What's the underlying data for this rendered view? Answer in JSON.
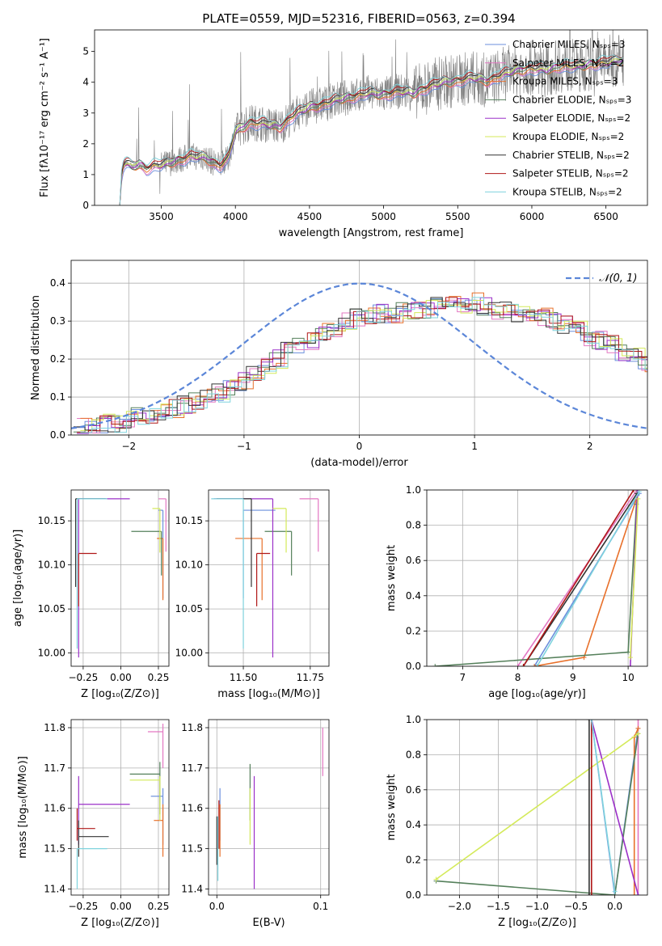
{
  "colors": {
    "chabrier_miles": "#6b8fdc",
    "salpeter_miles": "#e377c2",
    "kroupa_miles": "#e8702a",
    "chabrier_elodie": "#55805b",
    "salpeter_elodie": "#9b30c8",
    "kroupa_elodie": "#d4ea5a",
    "chabrier_stelib": "#333333",
    "salpeter_stelib": "#b01818",
    "kroupa_stelib": "#7fd3dd",
    "data": "#808080",
    "gauss": "#5b86d8"
  },
  "chart_data": [
    {
      "type": "line",
      "title": "PLATE=0559, MJD=52316, FIBERID=0563, z=0.394",
      "xlabel": "wavelength [Angstrom, rest frame]",
      "ylabel": "Flux [fλ10⁻¹⁷ erg cm⁻² s⁻¹ A⁻¹]",
      "xlim": [
        3050,
        6780
      ],
      "ylim": [
        0,
        5.7
      ],
      "xticks": [
        "3500",
        "4000",
        "4500",
        "5000",
        "5500",
        "6000",
        "6500"
      ],
      "yticks": [
        "0",
        "1",
        "2",
        "3",
        "4",
        "5"
      ],
      "legend_position": "top-right",
      "legend": [
        "Chabrier MILES, Nₛₚₛ=3",
        "Salpeter MILES, Nₛₚₛ=2",
        "Kroupa MILES, Nₛₚₛ=3",
        "Chabrier ELODIE, Nₛₚₛ=3",
        "Salpeter ELODIE, Nₛₚₛ=2",
        "Kroupa ELODIE, Nₛₚₛ=2",
        "Chabrier STELIB, Nₛₚₛ=2",
        "Salpeter STELIB, Nₛₚₛ=2",
        "Kroupa STELIB, Nₛₚₛ=2"
      ],
      "model_continuum": [
        [
          3220,
          0.0
        ],
        [
          3235,
          1.2
        ],
        [
          3260,
          1.4
        ],
        [
          3300,
          1.25
        ],
        [
          3350,
          1.35
        ],
        [
          3400,
          1.2
        ],
        [
          3450,
          1.3
        ],
        [
          3500,
          1.3
        ],
        [
          3600,
          1.45
        ],
        [
          3700,
          1.6
        ],
        [
          3800,
          1.55
        ],
        [
          3850,
          1.4
        ],
        [
          3900,
          1.3
        ],
        [
          3950,
          1.5
        ],
        [
          4000,
          2.4
        ],
        [
          4100,
          2.7
        ],
        [
          4200,
          2.65
        ],
        [
          4300,
          2.55
        ],
        [
          4400,
          2.95
        ],
        [
          4500,
          3.2
        ],
        [
          4600,
          3.3
        ],
        [
          4700,
          3.45
        ],
        [
          4800,
          3.55
        ],
        [
          4900,
          3.65
        ],
        [
          5000,
          3.6
        ],
        [
          5100,
          3.7
        ],
        [
          5200,
          3.65
        ],
        [
          5300,
          3.85
        ],
        [
          5400,
          4.0
        ],
        [
          5500,
          4.05
        ],
        [
          5600,
          4.15
        ],
        [
          5700,
          4.05
        ],
        [
          5800,
          4.25
        ],
        [
          5900,
          4.4
        ],
        [
          6000,
          4.45
        ],
        [
          6100,
          4.4
        ],
        [
          6200,
          4.55
        ],
        [
          6300,
          4.5
        ],
        [
          6400,
          4.6
        ],
        [
          6500,
          4.65
        ],
        [
          6600,
          4.7
        ]
      ]
    },
    {
      "type": "bar",
      "xlabel": "(data-model)/error",
      "ylabel": "Normed distribution",
      "xlim": [
        -2.5,
        2.5
      ],
      "ylim": [
        0,
        0.46
      ],
      "xticks": [
        "−2",
        "−1",
        "0",
        "1",
        "2"
      ],
      "yticks": [
        "0.0",
        "0.1",
        "0.2",
        "0.3",
        "0.4"
      ],
      "legend_position": "top-right",
      "legend": [
        "𝒩(0, 1)"
      ],
      "bin_width": 0.1,
      "histogram_mean_profile": [
        0.02,
        0.02,
        0.03,
        0.03,
        0.04,
        0.05,
        0.05,
        0.06,
        0.07,
        0.08,
        0.09,
        0.1,
        0.11,
        0.12,
        0.14,
        0.16,
        0.18,
        0.2,
        0.22,
        0.24,
        0.25,
        0.27,
        0.28,
        0.3,
        0.31,
        0.31,
        0.32,
        0.32,
        0.33,
        0.33,
        0.33,
        0.34,
        0.34,
        0.34,
        0.35,
        0.34,
        0.33,
        0.33,
        0.32,
        0.31,
        0.31,
        0.3,
        0.29,
        0.28,
        0.26,
        0.25,
        0.24,
        0.22,
        0.21,
        0.19,
        0.17,
        0.16,
        0.14,
        0.13,
        0.12,
        0.11,
        0.1,
        0.09,
        0.09,
        0.08,
        0.08,
        0.07,
        0.07,
        0.07,
        0.06,
        0.06
      ]
    },
    {
      "type": "scatter",
      "xlabel": "Z [log₁₀(Z/Z⊙)]",
      "ylabel": "age  [log₁₀(age/yr)]",
      "xlim": [
        -0.33,
        0.32
      ],
      "ylim": [
        9.985,
        10.185
      ],
      "xticks": [
        "−0.25",
        "0.00",
        "0.25"
      ],
      "yticks": [
        "10.00",
        "10.05",
        "10.10",
        "10.15"
      ],
      "points": [
        {
          "series": "chabrier_miles",
          "x": 0.28,
          "y": 10.162,
          "xerr": [
            0.03,
            0.0
          ],
          "yerr": [
            0.1,
            0.0
          ]
        },
        {
          "series": "salpeter_miles",
          "x": 0.3,
          "y": 10.175,
          "xerr": [
            0.05,
            0.0
          ],
          "yerr": [
            0.06,
            0.0
          ]
        },
        {
          "series": "kroupa_miles",
          "x": 0.28,
          "y": 10.13,
          "xerr": [
            0.04,
            0.0
          ],
          "yerr": [
            0.07,
            0.0
          ]
        },
        {
          "series": "chabrier_elodie",
          "x": 0.27,
          "y": 10.138,
          "xerr": [
            0.2,
            0.0
          ],
          "yerr": [
            0.05,
            0.0
          ]
        },
        {
          "series": "salpeter_elodie",
          "x": -0.28,
          "y": 10.175,
          "xerr": [
            0.0,
            0.34
          ],
          "yerr": [
            0.18,
            0.0
          ]
        },
        {
          "series": "kroupa_elodie",
          "x": 0.26,
          "y": 10.164,
          "xerr": [
            0.05,
            0.0
          ],
          "yerr": [
            0.05,
            0.0
          ]
        },
        {
          "series": "chabrier_stelib",
          "x": -0.3,
          "y": 10.175,
          "xerr": [
            0.0,
            0.2
          ],
          "yerr": [
            0.1,
            0.0
          ]
        },
        {
          "series": "salpeter_stelib",
          "x": -0.28,
          "y": 10.113,
          "xerr": [
            0.0,
            0.12
          ],
          "yerr": [
            0.06,
            0.0
          ]
        },
        {
          "series": "kroupa_stelib",
          "x": -0.29,
          "y": 10.175,
          "xerr": [
            0.0,
            0.2
          ],
          "yerr": [
            0.17,
            0.0
          ]
        }
      ]
    },
    {
      "type": "scatter",
      "xlabel": "mass [log₁₀(M/M⊙)]",
      "ylabel": "",
      "xlim": [
        11.37,
        11.82
      ],
      "ylim": [
        9.985,
        10.185
      ],
      "xticks": [
        "11.50",
        "11.75"
      ],
      "yticks": [
        "10.00",
        "10.05",
        "10.10",
        "10.15"
      ],
      "points": [
        {
          "series": "chabrier_miles",
          "x": 11.5,
          "y": 10.162,
          "xerr": [
            0.0,
            0.12
          ],
          "yerr": [
            0.1,
            0.0
          ]
        },
        {
          "series": "salpeter_miles",
          "x": 11.78,
          "y": 10.175,
          "xerr": [
            0.07,
            0.0
          ],
          "yerr": [
            0.06,
            0.0
          ]
        },
        {
          "series": "kroupa_miles",
          "x": 11.57,
          "y": 10.13,
          "xerr": [
            0.1,
            0.0
          ],
          "yerr": [
            0.07,
            0.0
          ]
        },
        {
          "series": "chabrier_elodie",
          "x": 11.68,
          "y": 10.138,
          "xerr": [
            0.1,
            0.0
          ],
          "yerr": [
            0.05,
            0.0
          ]
        },
        {
          "series": "salpeter_elodie",
          "x": 11.61,
          "y": 10.175,
          "xerr": [
            0.22,
            0.0
          ],
          "yerr": [
            0.18,
            0.0
          ]
        },
        {
          "series": "kroupa_elodie",
          "x": 11.66,
          "y": 10.164,
          "xerr": [
            0.05,
            0.0
          ],
          "yerr": [
            0.05,
            0.0
          ]
        },
        {
          "series": "chabrier_stelib",
          "x": 11.53,
          "y": 10.175,
          "xerr": [
            0.13,
            0.0
          ],
          "yerr": [
            0.1,
            0.0
          ]
        },
        {
          "series": "salpeter_stelib",
          "x": 11.55,
          "y": 10.113,
          "xerr": [
            0.0,
            0.05
          ],
          "yerr": [
            0.06,
            0.0
          ]
        },
        {
          "series": "kroupa_stelib",
          "x": 11.5,
          "y": 10.175,
          "xerr": [
            0.12,
            0.0
          ],
          "yerr": [
            0.17,
            0.0
          ]
        }
      ]
    },
    {
      "type": "line",
      "xlabel": "age  [log₁₀(age/yr)]",
      "ylabel": "mass weight",
      "xlim": [
        6.35,
        10.35
      ],
      "ylim": [
        0,
        1
      ],
      "xticks": [
        "7",
        "8",
        "9",
        "10"
      ],
      "yticks": [
        "0.0",
        "0.2",
        "0.4",
        "0.6",
        "0.8",
        "1.0"
      ],
      "series": [
        {
          "series": "chabrier_miles",
          "x": [
            8.3,
            10.2
          ],
          "y": [
            0.0,
            0.98
          ]
        },
        {
          "series": "salpeter_miles",
          "x": [
            8.0,
            10.16
          ],
          "y": [
            0.0,
            1.0
          ]
        },
        {
          "series": "kroupa_miles",
          "x": [
            8.3,
            9.2,
            10.15
          ],
          "y": [
            0.0,
            0.05,
            0.95
          ]
        },
        {
          "series": "chabrier_elodie",
          "x": [
            6.5,
            10.0,
            10.15
          ],
          "y": [
            0.0,
            0.08,
            0.92
          ]
        },
        {
          "series": "salpeter_elodie",
          "x": [
            10.04,
            10.17
          ],
          "y": [
            0.0,
            1.0
          ]
        },
        {
          "series": "kroupa_elodie",
          "x": [
            10.04,
            10.18
          ],
          "y": [
            0.05,
            0.95
          ]
        },
        {
          "series": "chabrier_stelib",
          "x": [
            8.1,
            10.16
          ],
          "y": [
            0.0,
            0.98
          ]
        },
        {
          "series": "salpeter_stelib",
          "x": [
            8.1,
            10.1
          ],
          "y": [
            0.0,
            1.0
          ]
        },
        {
          "series": "kroupa_stelib",
          "x": [
            8.35,
            10.2
          ],
          "y": [
            0.0,
            0.99
          ]
        }
      ]
    },
    {
      "type": "scatter",
      "xlabel": "Z [log₁₀(Z/Z⊙)]",
      "ylabel": "mass [log₁₀(M/M⊙)]",
      "xlim": [
        -0.33,
        0.32
      ],
      "ylim": [
        11.385,
        11.82
      ],
      "xticks": [
        "−0.25",
        "0.00",
        "0.25"
      ],
      "yticks": [
        "11.4",
        "11.5",
        "11.6",
        "11.7",
        "11.8"
      ],
      "points": [
        {
          "series": "chabrier_miles",
          "x": 0.28,
          "y": 11.63,
          "xerr": [
            0.08,
            0.0
          ],
          "yerr": [
            0.12,
            0.02
          ]
        },
        {
          "series": "salpeter_miles",
          "x": 0.28,
          "y": 11.79,
          "xerr": [
            0.1,
            0.0
          ],
          "yerr": [
            0.09,
            0.02
          ]
        },
        {
          "series": "kroupa_miles",
          "x": 0.28,
          "y": 11.57,
          "xerr": [
            0.06,
            0.0
          ],
          "yerr": [
            0.09,
            0.04
          ]
        },
        {
          "series": "chabrier_elodie",
          "x": 0.26,
          "y": 11.685,
          "xerr": [
            0.2,
            0.0
          ],
          "yerr": [
            0.1,
            0.03
          ]
        },
        {
          "series": "salpeter_elodie",
          "x": -0.28,
          "y": 11.61,
          "xerr": [
            0.0,
            0.34
          ],
          "yerr": [
            0.1,
            0.07
          ]
        },
        {
          "series": "kroupa_elodie",
          "x": 0.26,
          "y": 11.67,
          "xerr": [
            0.2,
            0.0
          ],
          "yerr": [
            0.1,
            0.01
          ]
        },
        {
          "series": "chabrier_stelib",
          "x": -0.28,
          "y": 11.53,
          "xerr": [
            0.0,
            0.2
          ],
          "yerr": [
            0.05,
            0.04
          ]
        },
        {
          "series": "salpeter_stelib",
          "x": -0.29,
          "y": 11.55,
          "xerr": [
            0.0,
            0.12
          ],
          "yerr": [
            0.03,
            0.05
          ]
        },
        {
          "series": "kroupa_stelib",
          "x": -0.29,
          "y": 11.5,
          "xerr": [
            0.0,
            0.2
          ],
          "yerr": [
            0.1,
            0.0
          ]
        }
      ]
    },
    {
      "type": "scatter",
      "xlabel": "E(B-V)",
      "ylabel": "",
      "xlim": [
        -0.008,
        0.108
      ],
      "ylim": [
        11.385,
        11.82
      ],
      "xticks": [
        "0.0",
        "0.1"
      ],
      "yticks": [
        "11.4",
        "11.5",
        "11.6",
        "11.7",
        "11.8"
      ],
      "points": [
        {
          "series": "chabrier_miles",
          "x": 0.003,
          "y": 11.59,
          "xerr": [
            0,
            0
          ],
          "yerr": [
            0.07,
            0.06
          ]
        },
        {
          "series": "salpeter_miles",
          "x": 0.102,
          "y": 11.74,
          "xerr": [
            0,
            0
          ],
          "yerr": [
            0.06,
            0.06
          ]
        },
        {
          "series": "kroupa_miles",
          "x": 0.003,
          "y": 11.55,
          "xerr": [
            0,
            0
          ],
          "yerr": [
            0.07,
            0.06
          ]
        },
        {
          "series": "chabrier_elodie",
          "x": 0.032,
          "y": 11.64,
          "xerr": [
            0,
            0
          ],
          "yerr": [
            0.07,
            0.07
          ]
        },
        {
          "series": "salpeter_elodie",
          "x": 0.036,
          "y": 11.55,
          "xerr": [
            0,
            0
          ],
          "yerr": [
            0.15,
            0.13
          ]
        },
        {
          "series": "kroupa_elodie",
          "x": 0.032,
          "y": 11.58,
          "xerr": [
            0,
            0
          ],
          "yerr": [
            0.07,
            0.07
          ]
        },
        {
          "series": "chabrier_stelib",
          "x": 0.0,
          "y": 11.53,
          "xerr": [
            0,
            0
          ],
          "yerr": [
            0.07,
            0.05
          ]
        },
        {
          "series": "salpeter_stelib",
          "x": 0.002,
          "y": 11.56,
          "xerr": [
            0,
            0
          ],
          "yerr": [
            0.06,
            0.06
          ]
        },
        {
          "series": "kroupa_stelib",
          "x": 0.001,
          "y": 11.5,
          "xerr": [
            0,
            0
          ],
          "yerr": [
            0.08,
            0.08
          ]
        }
      ]
    },
    {
      "type": "line",
      "xlabel": "Z [log₁₀(Z/Z⊙)]",
      "ylabel": "mass weight",
      "xlim": [
        -2.42,
        0.42
      ],
      "ylim": [
        0,
        1
      ],
      "xticks": [
        "−2.0",
        "−1.5",
        "−1.0",
        "−0.5",
        "0.0"
      ],
      "yticks": [
        "0.0",
        "0.2",
        "0.4",
        "0.6",
        "0.8",
        "1.0"
      ],
      "series": [
        {
          "series": "chabrier_miles",
          "x": [
            -0.3,
            0.0,
            0.3
          ],
          "y": [
            1.0,
            0.0,
            0.95
          ]
        },
        {
          "series": "salpeter_miles",
          "x": [
            0.3,
            0.3
          ],
          "y": [
            0.0,
            1.0
          ]
        },
        {
          "series": "kroupa_miles",
          "x": [
            0.25,
            0.25,
            0.3
          ],
          "y": [
            0.0,
            0.9,
            0.95
          ]
        },
        {
          "series": "chabrier_elodie",
          "x": [
            -2.3,
            0.0,
            0.3
          ],
          "y": [
            0.08,
            0.0,
            0.92
          ]
        },
        {
          "series": "salpeter_elodie",
          "x": [
            -0.3,
            0.3
          ],
          "y": [
            1.0,
            0.0
          ]
        },
        {
          "series": "kroupa_elodie",
          "x": [
            -2.3,
            0.3
          ],
          "y": [
            0.09,
            0.92
          ]
        },
        {
          "series": "chabrier_stelib",
          "x": [
            -0.33,
            -0.33
          ],
          "y": [
            0.0,
            1.0
          ]
        },
        {
          "series": "salpeter_stelib",
          "x": [
            -0.3,
            -0.3
          ],
          "y": [
            0.0,
            1.0
          ]
        },
        {
          "series": "kroupa_stelib",
          "x": [
            -0.3,
            0.0
          ],
          "y": [
            1.0,
            0.02
          ]
        }
      ]
    }
  ]
}
